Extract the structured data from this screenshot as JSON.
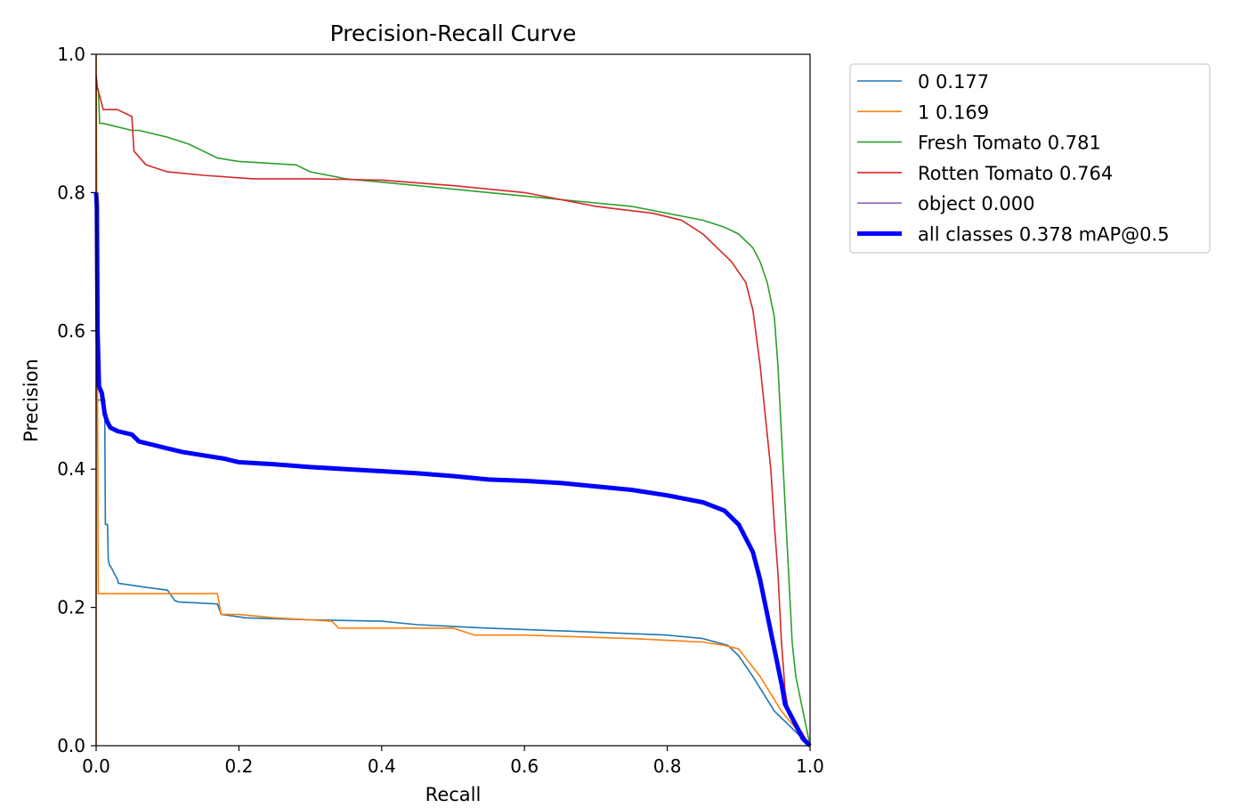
{
  "chart_data": {
    "type": "line",
    "title": "Precision-Recall Curve",
    "xlabel": "Recall",
    "ylabel": "Precision",
    "xlim": [
      0,
      1
    ],
    "ylim": [
      0,
      1
    ],
    "xticks": [
      "0.0",
      "0.2",
      "0.4",
      "0.6",
      "0.8",
      "1.0"
    ],
    "yticks": [
      "0.0",
      "0.2",
      "0.4",
      "0.6",
      "0.8",
      "1.0"
    ],
    "legend_position": "outside-top-right",
    "series": [
      {
        "name": "0 0.177",
        "color": "#1f77b4",
        "x": [
          0.0,
          0.0,
          0.012,
          0.013,
          0.016,
          0.017,
          0.019,
          0.02,
          0.03,
          0.031,
          0.05,
          0.07,
          0.1,
          0.11,
          0.115,
          0.17,
          0.175,
          0.21,
          0.3,
          0.4,
          0.45,
          0.55,
          0.68,
          0.8,
          0.85,
          0.885,
          0.9,
          0.92,
          0.95,
          1.0
        ],
        "y": [
          0.52,
          0.5,
          0.5,
          0.32,
          0.32,
          0.27,
          0.26,
          0.26,
          0.24,
          0.235,
          0.232,
          0.229,
          0.225,
          0.21,
          0.208,
          0.205,
          0.19,
          0.185,
          0.182,
          0.18,
          0.175,
          0.17,
          0.165,
          0.16,
          0.155,
          0.145,
          0.13,
          0.1,
          0.05,
          0.0
        ]
      },
      {
        "name": "1 0.169",
        "color": "#ff7f0e",
        "x": [
          0.0,
          0.0,
          0.002,
          0.003,
          0.17,
          0.175,
          0.2,
          0.25,
          0.3,
          0.33,
          0.34,
          0.4,
          0.5,
          0.53,
          0.6,
          0.75,
          0.85,
          0.88,
          0.9,
          0.93,
          0.96,
          1.0
        ],
        "y": [
          0.0,
          1.0,
          0.5,
          0.22,
          0.22,
          0.19,
          0.19,
          0.185,
          0.182,
          0.18,
          0.17,
          0.17,
          0.17,
          0.16,
          0.16,
          0.155,
          0.15,
          0.145,
          0.14,
          0.1,
          0.05,
          0.0
        ]
      },
      {
        "name": "Fresh Tomato 0.781",
        "color": "#2ca02c",
        "x": [
          0.0,
          0.003,
          0.005,
          0.01,
          0.05,
          0.06,
          0.1,
          0.13,
          0.15,
          0.17,
          0.2,
          0.28,
          0.3,
          0.35,
          0.45,
          0.55,
          0.65,
          0.75,
          0.8,
          0.85,
          0.88,
          0.9,
          0.92,
          0.93,
          0.94,
          0.95,
          0.955,
          0.96,
          0.965,
          0.97,
          0.975,
          0.98,
          1.0
        ],
        "y": [
          0.95,
          0.95,
          0.9,
          0.9,
          0.89,
          0.89,
          0.88,
          0.87,
          0.86,
          0.85,
          0.845,
          0.84,
          0.83,
          0.82,
          0.81,
          0.8,
          0.79,
          0.78,
          0.77,
          0.76,
          0.75,
          0.74,
          0.72,
          0.7,
          0.67,
          0.62,
          0.55,
          0.45,
          0.35,
          0.25,
          0.15,
          0.1,
          0.0
        ]
      },
      {
        "name": "Rotten Tomato 0.764",
        "color": "#d62728",
        "x": [
          0.0,
          0.002,
          0.005,
          0.01,
          0.03,
          0.05,
          0.053,
          0.07,
          0.1,
          0.15,
          0.22,
          0.3,
          0.4,
          0.5,
          0.6,
          0.7,
          0.78,
          0.82,
          0.85,
          0.87,
          0.89,
          0.91,
          0.92,
          0.93,
          0.935,
          0.94,
          0.945,
          0.95,
          0.955,
          0.96,
          0.965,
          0.97,
          1.0
        ],
        "y": [
          0.97,
          0.95,
          0.94,
          0.92,
          0.92,
          0.91,
          0.86,
          0.84,
          0.83,
          0.825,
          0.82,
          0.82,
          0.818,
          0.81,
          0.8,
          0.78,
          0.77,
          0.76,
          0.74,
          0.72,
          0.7,
          0.67,
          0.63,
          0.55,
          0.5,
          0.45,
          0.4,
          0.32,
          0.25,
          0.15,
          0.08,
          0.05,
          0.0
        ]
      },
      {
        "name": "object 0.000",
        "color": "#9467bd",
        "x": [
          0.0,
          1.0
        ],
        "y": [
          0.0,
          0.0
        ],
        "visible_line": false
      },
      {
        "name": "all classes 0.378 mAP@0.5",
        "color": "#0000ff",
        "x": [
          0.0,
          0.001,
          0.002,
          0.004,
          0.008,
          0.012,
          0.015,
          0.02,
          0.03,
          0.05,
          0.06,
          0.08,
          0.1,
          0.12,
          0.15,
          0.18,
          0.2,
          0.25,
          0.3,
          0.35,
          0.4,
          0.45,
          0.5,
          0.55,
          0.6,
          0.65,
          0.7,
          0.75,
          0.8,
          0.85,
          0.88,
          0.9,
          0.92,
          0.93,
          0.94,
          0.95,
          0.96,
          0.965,
          0.97,
          0.98,
          0.99,
          1.0
        ],
        "y": [
          0.8,
          0.78,
          0.6,
          0.52,
          0.51,
          0.48,
          0.47,
          0.46,
          0.455,
          0.45,
          0.44,
          0.435,
          0.43,
          0.425,
          0.42,
          0.415,
          0.41,
          0.407,
          0.403,
          0.4,
          0.397,
          0.394,
          0.39,
          0.385,
          0.383,
          0.38,
          0.375,
          0.37,
          0.362,
          0.352,
          0.34,
          0.32,
          0.28,
          0.24,
          0.19,
          0.14,
          0.09,
          0.06,
          0.05,
          0.03,
          0.01,
          0.0
        ]
      }
    ]
  }
}
